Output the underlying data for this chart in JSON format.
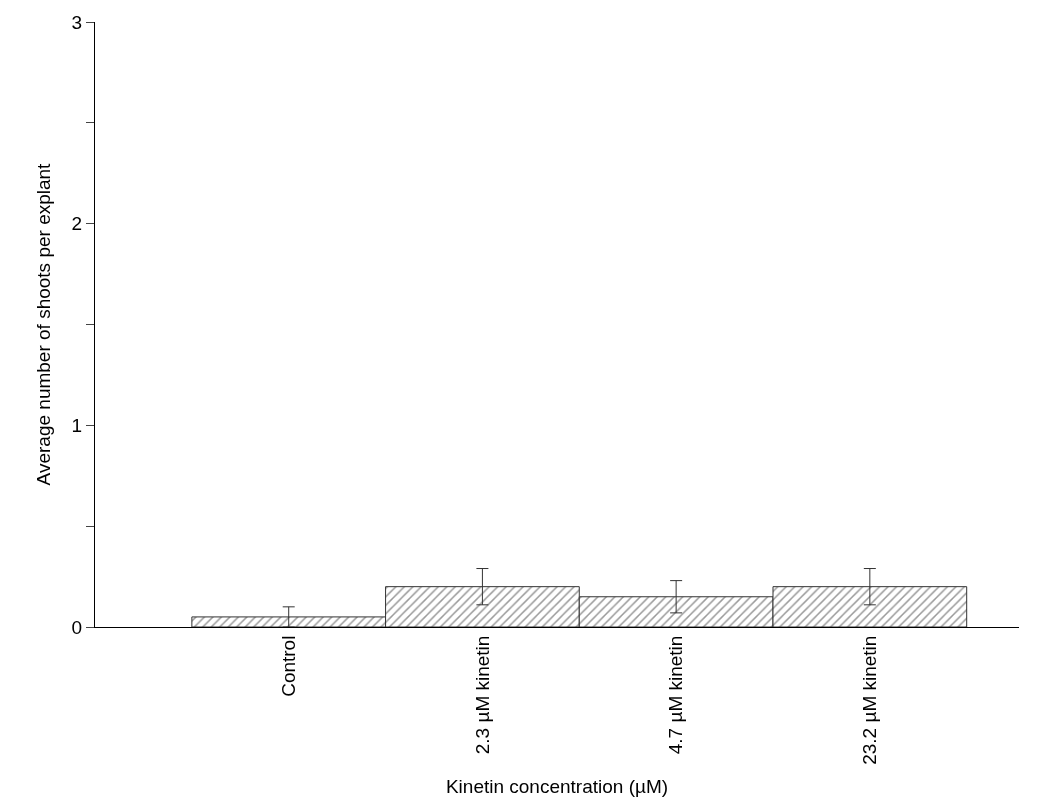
{
  "chart_data": {
    "type": "bar",
    "xlabel": "Kinetin concentration (µM)",
    "ylabel": "Average number of shoots per explant",
    "categories": [
      "Control",
      "2.3 µM kinetin",
      "4.7 µM kinetin",
      "23.2 µM kinetin"
    ],
    "values": [
      0.05,
      0.2,
      0.15,
      0.2
    ],
    "errors": [
      0.05,
      0.09,
      0.08,
      0.09
    ],
    "color": "#333333",
    "ylim": [
      0,
      3
    ],
    "yticks": [
      0,
      {
        "value": 0.5,
        "label": null
      },
      1,
      {
        "value": 1.5,
        "label": null
      },
      2,
      {
        "value": 2.5,
        "label": null
      },
      3
    ],
    "legend": false
  }
}
